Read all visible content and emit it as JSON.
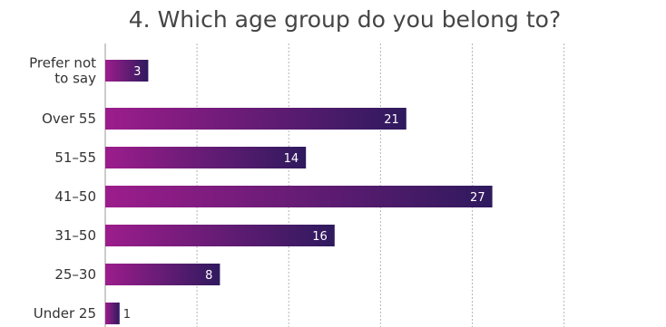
{
  "chart_data": {
    "type": "bar",
    "orientation": "horizontal",
    "title": "4. Which age group do you belong to?",
    "categories": [
      "Prefer not to say",
      "Over 55",
      "51–55",
      "41–50",
      "31–50",
      "25–30",
      "Under 25"
    ],
    "category_lines": [
      [
        "Prefer not",
        "to say"
      ],
      [
        "Over 55"
      ],
      [
        "51–55"
      ],
      [
        "41–50"
      ],
      [
        "31–50"
      ],
      [
        "25–30"
      ],
      [
        "Under 25"
      ]
    ],
    "values": [
      3,
      21,
      14,
      27,
      16,
      8,
      1
    ],
    "data_labels": [
      "3",
      "21",
      "14",
      "27",
      "16",
      "8",
      "1"
    ],
    "xlim": [
      0,
      30
    ],
    "grid": true,
    "legend": "none",
    "bar_gradient": [
      "#9c1d8c",
      "#2f1a5e"
    ],
    "value_label_color_inside": "#ffffff",
    "value_label_color_outside": "#333333"
  }
}
